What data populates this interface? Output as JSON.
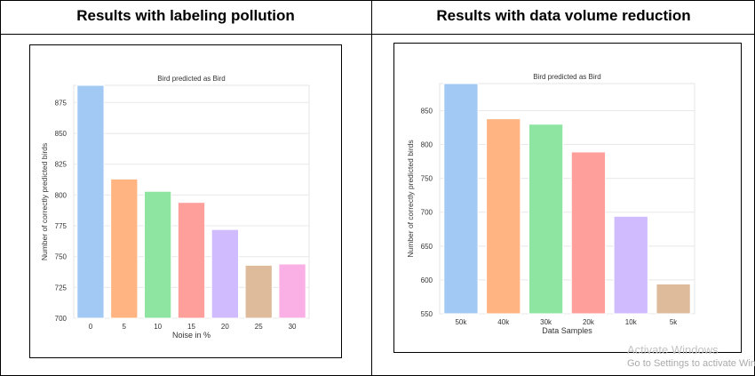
{
  "panels": [
    {
      "heading": "Results with labeling pollution"
    },
    {
      "heading": "Results with data volume reduction"
    }
  ],
  "chart_data": [
    {
      "type": "bar",
      "title": "Bird predicted as Bird",
      "xlabel": "Noise in %",
      "ylabel": "Number of correctly predicted birds",
      "categories": [
        "0",
        "5",
        "10",
        "15",
        "20",
        "25",
        "30"
      ],
      "values": [
        889,
        813,
        803,
        794,
        772,
        743,
        744
      ],
      "ylim": [
        700,
        889
      ],
      "yticks": [
        700,
        725,
        750,
        775,
        800,
        825,
        850,
        875
      ],
      "grid": true,
      "colors": [
        "#a1c9f4",
        "#ffb482",
        "#8de5a1",
        "#ff9f9b",
        "#d0bbff",
        "#debb9b",
        "#fab0e4"
      ]
    },
    {
      "type": "bar",
      "title": "Bird predicted as Bird",
      "xlabel": "Data Samples",
      "ylabel": "Number of correctly predicted birds",
      "categories": [
        "50k",
        "40k",
        "30k",
        "20k",
        "10k",
        "5k"
      ],
      "values": [
        890,
        838,
        830,
        789,
        694,
        594
      ],
      "ylim": [
        550,
        890
      ],
      "yticks": [
        550,
        600,
        650,
        700,
        750,
        800,
        850
      ],
      "grid": true,
      "colors": [
        "#a1c9f4",
        "#ffb482",
        "#8de5a1",
        "#ff9f9b",
        "#d0bbff",
        "#debb9b"
      ]
    }
  ],
  "watermark": {
    "line1": "Activate Windows",
    "line2": "Go to Settings to activate Windows."
  }
}
